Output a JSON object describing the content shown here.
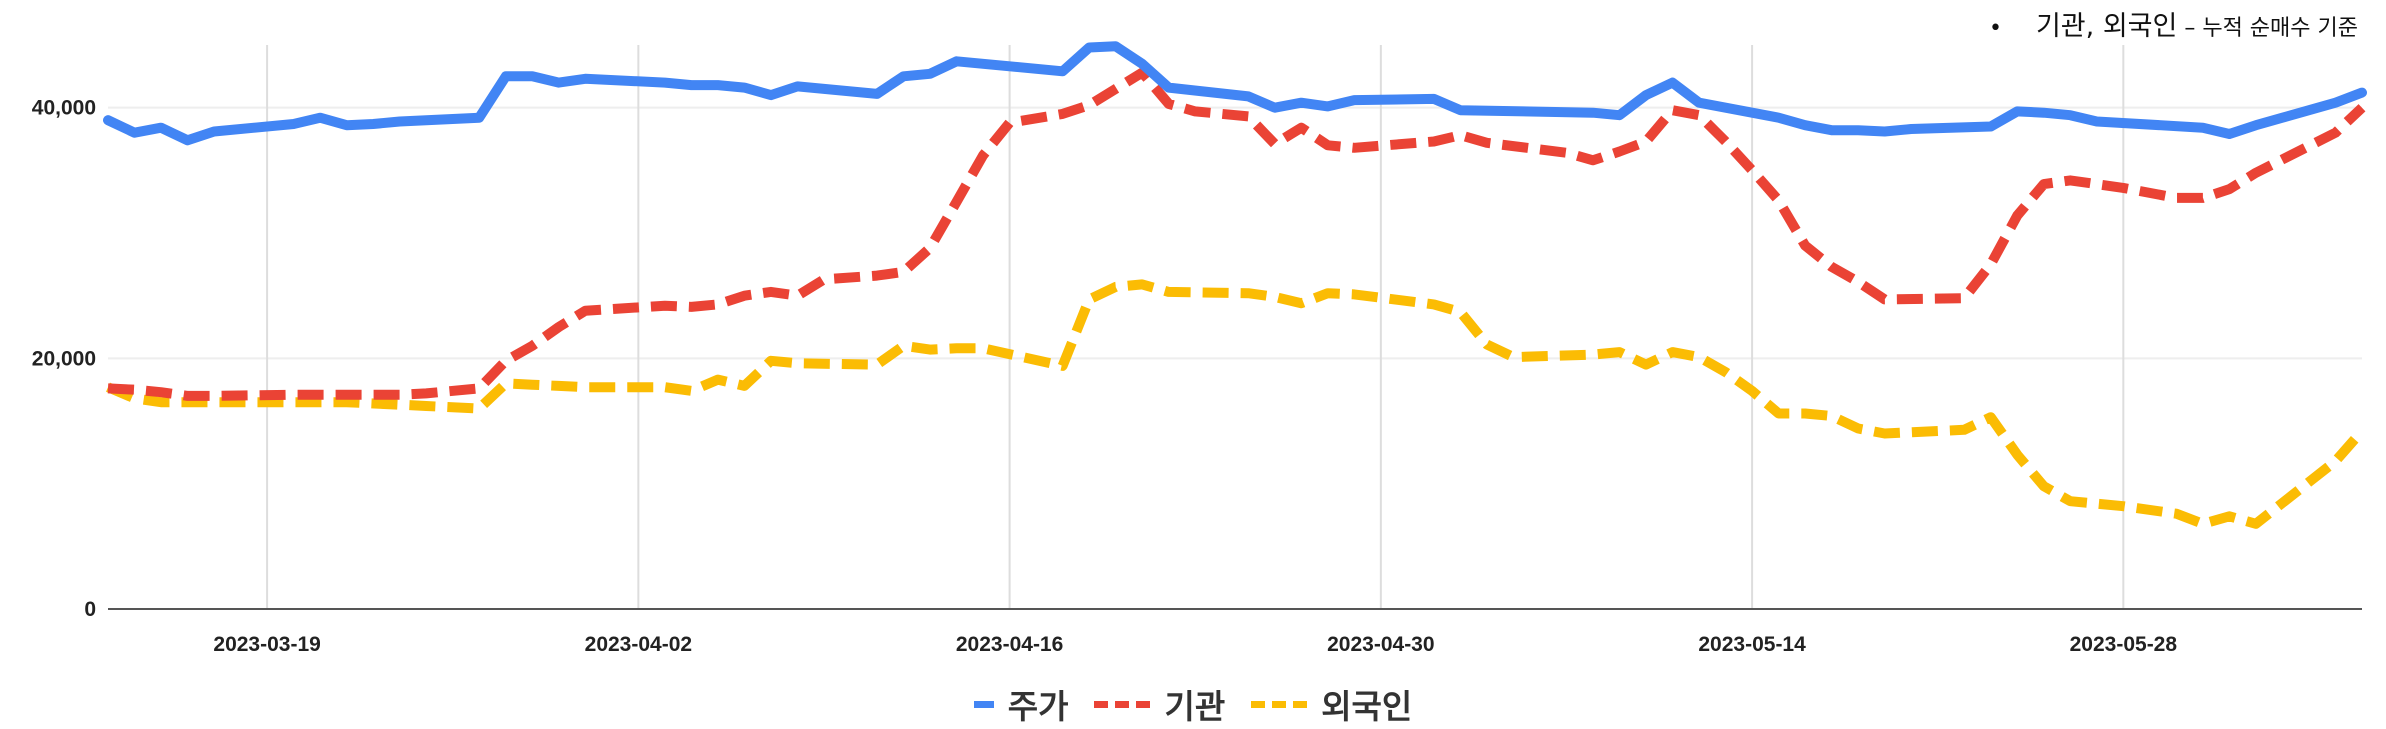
{
  "annotation": {
    "bullet": "•",
    "main": "기관, 외국인",
    "detail": " – 누적 순매수 기준"
  },
  "chart_data": {
    "type": "line",
    "title": "",
    "xlabel": "",
    "ylabel": "",
    "ylim": [
      0,
      45000
    ],
    "xlim": [
      "2023-03-13",
      "2023-06-03"
    ],
    "yticks": [
      0,
      20000,
      40000
    ],
    "ytick_labels": [
      "0",
      "20,000",
      "40,000"
    ],
    "xticks": [
      "2023-03-19",
      "2023-04-02",
      "2023-04-16",
      "2023-04-30",
      "2023-05-14",
      "2023-05-28"
    ],
    "grid": true,
    "legend_position": "bottom",
    "series": [
      {
        "name": "주가",
        "color": "#4285F4",
        "style": "solid",
        "points": [
          [
            "2023-03-13",
            39000
          ],
          [
            "2023-03-14",
            38000
          ],
          [
            "2023-03-15",
            38400
          ],
          [
            "2023-03-16",
            37400
          ],
          [
            "2023-03-17",
            38100
          ],
          [
            "2023-03-20",
            38700
          ],
          [
            "2023-03-21",
            39200
          ],
          [
            "2023-03-22",
            38600
          ],
          [
            "2023-03-23",
            38700
          ],
          [
            "2023-03-24",
            38900
          ],
          [
            "2023-03-27",
            39200
          ],
          [
            "2023-03-28",
            42500
          ],
          [
            "2023-03-29",
            42500
          ],
          [
            "2023-03-30",
            42000
          ],
          [
            "2023-03-31",
            42300
          ],
          [
            "2023-04-03",
            42000
          ],
          [
            "2023-04-04",
            41800
          ],
          [
            "2023-04-05",
            41800
          ],
          [
            "2023-04-06",
            41600
          ],
          [
            "2023-04-07",
            41000
          ],
          [
            "2023-04-08",
            41700
          ],
          [
            "2023-04-11",
            41100
          ],
          [
            "2023-04-12",
            42500
          ],
          [
            "2023-04-13",
            42700
          ],
          [
            "2023-04-14",
            43700
          ],
          [
            "2023-04-18",
            42900
          ],
          [
            "2023-04-19",
            44800
          ],
          [
            "2023-04-20",
            44900
          ],
          [
            "2023-04-21",
            43500
          ],
          [
            "2023-04-22",
            41600
          ],
          [
            "2023-04-25",
            40900
          ],
          [
            "2023-04-26",
            40000
          ],
          [
            "2023-04-27",
            40400
          ],
          [
            "2023-04-28",
            40100
          ],
          [
            "2023-04-29",
            40600
          ],
          [
            "2023-05-02",
            40700
          ],
          [
            "2023-05-03",
            39800
          ],
          [
            "2023-05-08",
            39600
          ],
          [
            "2023-05-09",
            39400
          ],
          [
            "2023-05-10",
            41000
          ],
          [
            "2023-05-11",
            42000
          ],
          [
            "2023-05-12",
            40400
          ],
          [
            "2023-05-15",
            39200
          ],
          [
            "2023-05-16",
            38600
          ],
          [
            "2023-05-17",
            38200
          ],
          [
            "2023-05-18",
            38200
          ],
          [
            "2023-05-19",
            38100
          ],
          [
            "2023-05-20",
            38300
          ],
          [
            "2023-05-23",
            38500
          ],
          [
            "2023-05-24",
            39700
          ],
          [
            "2023-05-25",
            39600
          ],
          [
            "2023-05-26",
            39400
          ],
          [
            "2023-05-27",
            38900
          ],
          [
            "2023-05-31",
            38400
          ],
          [
            "2023-06-01",
            37900
          ],
          [
            "2023-06-02",
            38600
          ],
          [
            "2023-06-03",
            39200
          ],
          [
            "2023-06-05",
            40400
          ],
          [
            "2023-06-06",
            41200
          ]
        ]
      },
      {
        "name": "기관",
        "color": "#EA4335",
        "style": "dashed",
        "points": [
          [
            "2023-03-13",
            17600
          ],
          [
            "2023-03-14",
            17500
          ],
          [
            "2023-03-15",
            17300
          ],
          [
            "2023-03-16",
            17000
          ],
          [
            "2023-03-17",
            17000
          ],
          [
            "2023-03-20",
            17100
          ],
          [
            "2023-03-22",
            17100
          ],
          [
            "2023-03-24",
            17100
          ],
          [
            "2023-03-25",
            17200
          ],
          [
            "2023-03-27",
            17600
          ],
          [
            "2023-03-28",
            19800
          ],
          [
            "2023-03-29",
            21000
          ],
          [
            "2023-03-30",
            22500
          ],
          [
            "2023-03-31",
            23800
          ],
          [
            "2023-04-03",
            24200
          ],
          [
            "2023-04-04",
            24100
          ],
          [
            "2023-04-05",
            24300
          ],
          [
            "2023-04-06",
            25000
          ],
          [
            "2023-04-07",
            25300
          ],
          [
            "2023-04-08",
            25000
          ],
          [
            "2023-04-09",
            26300
          ],
          [
            "2023-04-11",
            26600
          ],
          [
            "2023-04-12",
            26900
          ],
          [
            "2023-04-13",
            28800
          ],
          [
            "2023-04-14",
            32500
          ],
          [
            "2023-04-15",
            36200
          ],
          [
            "2023-04-16",
            38800
          ],
          [
            "2023-04-18",
            39500
          ],
          [
            "2023-04-19",
            40200
          ],
          [
            "2023-04-20",
            41500
          ],
          [
            "2023-04-21",
            42800
          ],
          [
            "2023-04-22",
            40300
          ],
          [
            "2023-04-23",
            39700
          ],
          [
            "2023-04-25",
            39300
          ],
          [
            "2023-04-26",
            37100
          ],
          [
            "2023-04-27",
            38400
          ],
          [
            "2023-04-28",
            37000
          ],
          [
            "2023-04-29",
            36800
          ],
          [
            "2023-05-02",
            37300
          ],
          [
            "2023-05-03",
            37800
          ],
          [
            "2023-05-04",
            37200
          ],
          [
            "2023-05-07",
            36400
          ],
          [
            "2023-05-08",
            35800
          ],
          [
            "2023-05-09",
            36500
          ],
          [
            "2023-05-10",
            37300
          ],
          [
            "2023-05-11",
            39800
          ],
          [
            "2023-05-12",
            39400
          ],
          [
            "2023-05-13",
            37300
          ],
          [
            "2023-05-14",
            35000
          ],
          [
            "2023-05-15",
            32600
          ],
          [
            "2023-05-16",
            29000
          ],
          [
            "2023-05-17",
            27300
          ],
          [
            "2023-05-18",
            26100
          ],
          [
            "2023-05-19",
            24700
          ],
          [
            "2023-05-22",
            24800
          ],
          [
            "2023-05-23",
            27500
          ],
          [
            "2023-05-24",
            31400
          ],
          [
            "2023-05-25",
            33900
          ],
          [
            "2023-05-26",
            34200
          ],
          [
            "2023-05-28",
            33600
          ],
          [
            "2023-05-30",
            32800
          ],
          [
            "2023-05-31",
            32800
          ],
          [
            "2023-06-01",
            33500
          ],
          [
            "2023-06-02",
            34800
          ],
          [
            "2023-06-05",
            38000
          ],
          [
            "2023-06-06",
            40000
          ]
        ]
      },
      {
        "name": "외국인",
        "color": "#FBBC04",
        "style": "dashed",
        "points": [
          [
            "2023-03-13",
            17700
          ],
          [
            "2023-03-14",
            16800
          ],
          [
            "2023-03-15",
            16500
          ],
          [
            "2023-03-16",
            16500
          ],
          [
            "2023-03-17",
            16500
          ],
          [
            "2023-03-20",
            16500
          ],
          [
            "2023-03-22",
            16500
          ],
          [
            "2023-03-24",
            16300
          ],
          [
            "2023-03-25",
            16200
          ],
          [
            "2023-03-27",
            16000
          ],
          [
            "2023-03-28",
            18000
          ],
          [
            "2023-03-29",
            17900
          ],
          [
            "2023-03-30",
            17800
          ],
          [
            "2023-03-31",
            17700
          ],
          [
            "2023-04-03",
            17700
          ],
          [
            "2023-04-04",
            17400
          ],
          [
            "2023-04-05",
            18300
          ],
          [
            "2023-04-06",
            17800
          ],
          [
            "2023-04-07",
            19800
          ],
          [
            "2023-04-08",
            19600
          ],
          [
            "2023-04-11",
            19500
          ],
          [
            "2023-04-12",
            21000
          ],
          [
            "2023-04-13",
            20700
          ],
          [
            "2023-04-14",
            20800
          ],
          [
            "2023-04-15",
            20800
          ],
          [
            "2023-04-18",
            19400
          ],
          [
            "2023-04-19",
            24700
          ],
          [
            "2023-04-20",
            25700
          ],
          [
            "2023-04-21",
            25900
          ],
          [
            "2023-04-22",
            25300
          ],
          [
            "2023-04-25",
            25200
          ],
          [
            "2023-04-26",
            24900
          ],
          [
            "2023-04-27",
            24400
          ],
          [
            "2023-04-28",
            25200
          ],
          [
            "2023-04-29",
            25100
          ],
          [
            "2023-05-02",
            24300
          ],
          [
            "2023-05-03",
            23700
          ],
          [
            "2023-05-04",
            21100
          ],
          [
            "2023-05-05",
            20100
          ],
          [
            "2023-05-08",
            20300
          ],
          [
            "2023-05-09",
            20500
          ],
          [
            "2023-05-10",
            19500
          ],
          [
            "2023-05-11",
            20500
          ],
          [
            "2023-05-12",
            20100
          ],
          [
            "2023-05-13",
            18900
          ],
          [
            "2023-05-14",
            17400
          ],
          [
            "2023-05-15",
            15600
          ],
          [
            "2023-05-16",
            15600
          ],
          [
            "2023-05-17",
            15400
          ],
          [
            "2023-05-18",
            14400
          ],
          [
            "2023-05-19",
            14000
          ],
          [
            "2023-05-22",
            14300
          ],
          [
            "2023-05-23",
            15300
          ],
          [
            "2023-05-24",
            12300
          ],
          [
            "2023-05-25",
            9800
          ],
          [
            "2023-05-26",
            8600
          ],
          [
            "2023-05-28",
            8200
          ],
          [
            "2023-05-30",
            7600
          ],
          [
            "2023-05-31",
            6800
          ],
          [
            "2023-06-01",
            7400
          ],
          [
            "2023-06-02",
            6800
          ],
          [
            "2023-06-05",
            11800
          ],
          [
            "2023-06-06",
            14200
          ]
        ]
      }
    ]
  }
}
